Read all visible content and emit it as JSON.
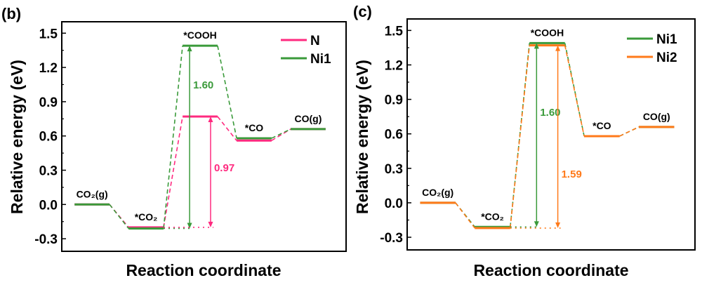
{
  "chart_data": [
    {
      "type": "line",
      "panel_label": "(b)",
      "xlabel": "Reaction coordinate",
      "ylabel": "Relative energy (eV)",
      "ylim": [
        -0.41,
        1.6
      ],
      "yticks": [
        "-0.3",
        "0.0",
        "0.3",
        "0.6",
        "0.9",
        "1.2",
        "1.5"
      ],
      "grid": false,
      "legend_position": "top-right",
      "states": [
        "CO₂(g)",
        "*CO₂",
        "*COOH",
        "*CO",
        "CO(g)"
      ],
      "series": [
        {
          "name": "N",
          "color": "#ff2a7f",
          "values": [
            0.0,
            -0.2,
            0.77,
            0.56,
            0.66
          ]
        },
        {
          "name": "Ni1",
          "color": "#3a9a3a",
          "values": [
            0.0,
            -0.21,
            1.39,
            0.58,
            0.66
          ]
        }
      ],
      "annotations": [
        {
          "series": "Ni1",
          "from": -0.21,
          "to": 1.39,
          "label": "1.60",
          "color": "#3a9a3a"
        },
        {
          "series": "N",
          "from": -0.2,
          "to": 0.77,
          "label": "0.97",
          "color": "#ff2a7f"
        }
      ]
    },
    {
      "type": "line",
      "panel_label": "(c)",
      "xlabel": "Reaction coordinate",
      "ylabel": "Relative energy (eV)",
      "ylim": [
        -0.41,
        1.6
      ],
      "yticks": [
        "-0.3",
        "0.0",
        "0.3",
        "0.6",
        "0.9",
        "1.2",
        "1.5"
      ],
      "grid": false,
      "legend_position": "top-right",
      "states": [
        "CO₂(g)",
        "*CO₂",
        "*COOH",
        "*CO",
        "CO(g)"
      ],
      "series": [
        {
          "name": "Ni1",
          "color": "#3a9a3a",
          "values": [
            0.0,
            -0.21,
            1.39,
            0.58,
            0.66
          ]
        },
        {
          "name": "Ni2",
          "color": "#ff7a1a",
          "values": [
            0.0,
            -0.22,
            1.37,
            0.58,
            0.66
          ]
        }
      ],
      "annotations": [
        {
          "series": "Ni1",
          "from": -0.21,
          "to": 1.39,
          "label": "1.60",
          "color": "#3a9a3a"
        },
        {
          "series": "Ni2",
          "from": -0.22,
          "to": 1.37,
          "label": "1.59",
          "color": "#ff7a1a"
        }
      ]
    }
  ]
}
